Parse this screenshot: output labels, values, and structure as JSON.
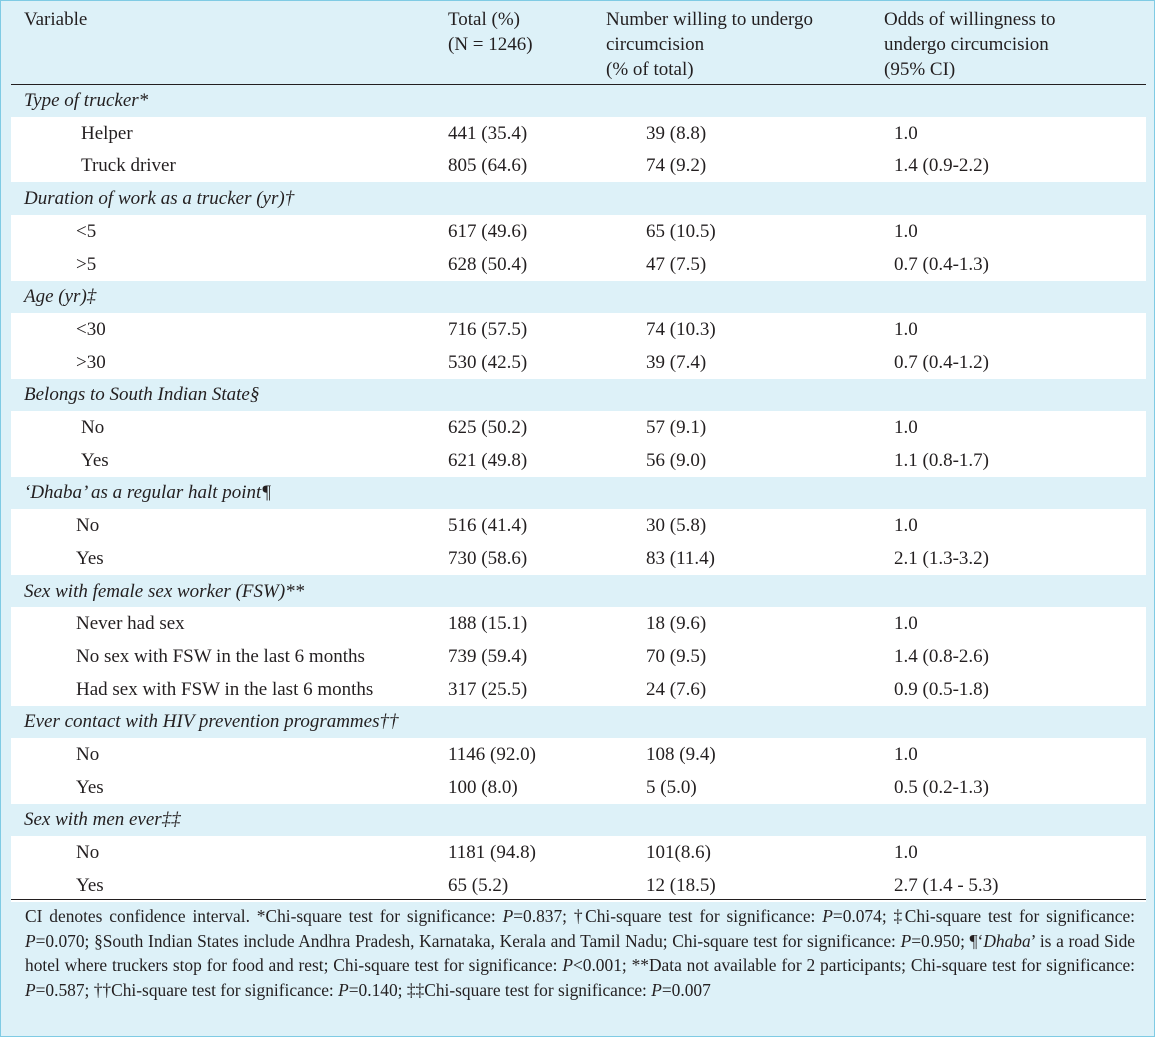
{
  "header": {
    "variable": "Variable",
    "total": [
      "Total (%)",
      "(N = 1246)"
    ],
    "willing": [
      "Number willing to undergo",
      "circumcision",
      "(% of total)"
    ],
    "odds": [
      "Odds of willingness to",
      "undergo circumcision",
      "(95% CI)"
    ]
  },
  "groups": [
    {
      "title": "Type of trucker*",
      "rows": [
        {
          "label": "Helper",
          "total": "441 (35.4)",
          "willing": "39 (8.8)",
          "odds": "1.0"
        },
        {
          "label": "Truck driver",
          "total": "805 (64.6)",
          "willing": "74 (9.2)",
          "odds": "1.4 (0.9-2.2)"
        }
      ]
    },
    {
      "title": "Duration of work as a trucker (yr)†",
      "rows": [
        {
          "label": "<5",
          "total": "617 (49.6)",
          "willing": "65 (10.5)",
          "odds": "1.0"
        },
        {
          "label": ">5",
          "total": "628 (50.4)",
          "willing": "47 (7.5)",
          "odds": "0.7 (0.4-1.3)"
        }
      ]
    },
    {
      "title": "Age (yr)‡",
      "rows": [
        {
          "label": "<30",
          "total": "716 (57.5)",
          "willing": "74 (10.3)",
          "odds": "1.0"
        },
        {
          "label": ">30",
          "total": "530 (42.5)",
          "willing": "39 (7.4)",
          "odds": "0.7 (0.4-1.2)"
        }
      ]
    },
    {
      "title": "Belongs to South Indian State§",
      "rows": [
        {
          "label": "No",
          "total": "625 (50.2)",
          "willing": "57 (9.1)",
          "odds": "1.0"
        },
        {
          "label": "Yes",
          "total": "621 (49.8)",
          "willing": "56 (9.0)",
          "odds": "1.1 (0.8-1.7)"
        }
      ]
    },
    {
      "title": "‘Dhaba’ as a regular halt point¶",
      "rows": [
        {
          "label": "No",
          "total": "516 (41.4)",
          "willing": "30 (5.8)",
          "odds": "1.0"
        },
        {
          "label": "Yes",
          "total": "730 (58.6)",
          "willing": "83 (11.4)",
          "odds": "2.1 (1.3-3.2)"
        }
      ]
    },
    {
      "title": "Sex with female sex worker (FSW)**",
      "rows": [
        {
          "label": "Never had sex",
          "total": "188 (15.1)",
          "willing": "18 (9.6)",
          "odds": "1.0"
        },
        {
          "label": "No sex with FSW in the last 6 months",
          "total": "739 (59.4)",
          "willing": "70 (9.5)",
          "odds": "1.4 (0.8-2.6)"
        },
        {
          "label": "Had sex with FSW in the last 6 months",
          "total": "317 (25.5)",
          "willing": "24 (7.6)",
          "odds": "0.9 (0.5-1.8)"
        }
      ]
    },
    {
      "title": "Ever contact with HIV prevention programmes††",
      "rows": [
        {
          "label": "No",
          "total": "1146 (92.0)",
          "willing": "108 (9.4)",
          "odds": "1.0"
        },
        {
          "label": "Yes",
          "total": "100 (8.0)",
          "willing": "5 (5.0)",
          "odds": "0.5 (0.2-1.3)"
        }
      ]
    },
    {
      "title": "Sex with men ever‡‡",
      "rows": [
        {
          "label": "No",
          "total": "1181 (94.8)",
          "willing": "101(8.6)",
          "odds": "1.0"
        },
        {
          "label": "Yes",
          "total": "65 (5.2)",
          "willing": "12 (18.5)",
          "odds": "2.7 (1.4 - 5.3)"
        }
      ]
    }
  ],
  "footnote": {
    "s1": "CI denotes confidence interval. *Chi-square test for significance: ",
    "p1": "P",
    "s2": "=0.837; †Chi-square test for significance: ",
    "p2": "P",
    "s3": "=0.074; ‡Chi-square test for significance: ",
    "p3": "P",
    "s4": "=0.070; §South Indian States include Andhra Pradesh, Karnataka, Kerala and Tamil Nadu; Chi-square test for significance: ",
    "p4": "P",
    "s5": "=0.950; ¶‘",
    "dhaba": "Dhaba",
    "s6": "’ is a road Side hotel where truckers stop for food and rest; Chi-square test for significance: ",
    "p5": "P",
    "s7": "<0.001; **Data not available for 2 participants; Chi-square test for significance: ",
    "p6": "P",
    "s8": "=0.587; ††Chi-square test for significance: ",
    "p7": "P",
    "s9": "=0.140; ‡‡Chi-square test for significance: ",
    "p8": "P",
    "s10": "=0.007"
  },
  "colors": {
    "background": "#ddf1f8",
    "row_band": "#ffffff",
    "border": "#7fcbe4",
    "text": "#231f20"
  }
}
